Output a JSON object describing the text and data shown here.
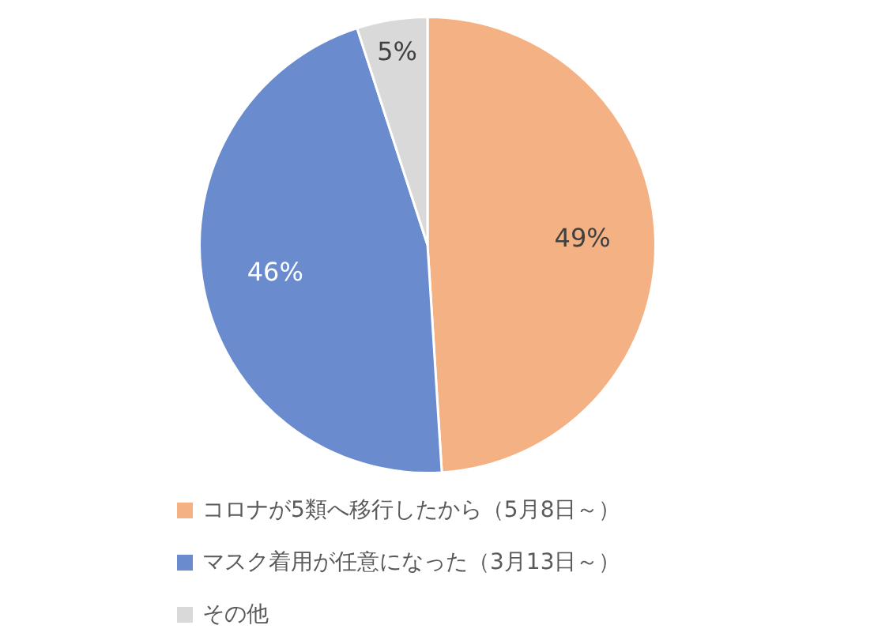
{
  "chart_data": {
    "type": "pie",
    "categories": [
      "コロナが5類へ移行したから（5月8日～）",
      "マスク着用が任意になった（3月13日～）",
      "その他"
    ],
    "values": [
      49,
      46,
      5
    ],
    "colors": [
      "#f4b183",
      "#6a8ccf",
      "#d9d9d9"
    ],
    "value_labels": [
      "49%",
      "46%",
      "5%"
    ],
    "legend": "bottom"
  }
}
